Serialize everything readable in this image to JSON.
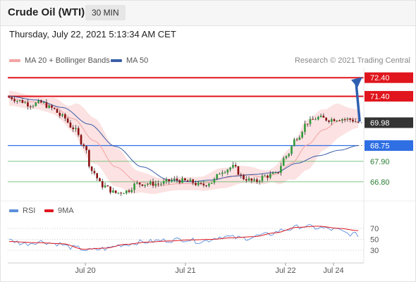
{
  "header": {
    "title": "Crude Oil (WTI)",
    "timeframe": "30 MIN",
    "datetime": "Thursday, July 22, 2021 5:13:34 AM CET"
  },
  "legend": {
    "ma20": "MA 20 + Bollinger Bands",
    "ma50": "MA 50",
    "rsi": "RSI",
    "rsi_ma": "9MA"
  },
  "source": "Research © 2021 Trading Central",
  "colors": {
    "resistance": "#e0151d",
    "pivot": "#2f6fe4",
    "support": "#54b45a",
    "current": "#333333",
    "bollinger": "#fbd8d8",
    "ma20": "#f3a3a3",
    "ma50": "#3a5ea8",
    "rsi": "#5b8fdc",
    "rsi_ma": "#e0151d",
    "candle_up": "#2f9a3a",
    "candle_down": "#8a1010"
  },
  "chart_data": [
    {
      "type": "candlestick",
      "x_ticks": [
        "Jul 20",
        "Jul 21",
        "Jul 22",
        "Jul 24"
      ],
      "ylim": [
        66.0,
        72.9
      ],
      "levels": [
        {
          "value": 72.4,
          "label": "72.40",
          "kind": "resistance"
        },
        {
          "value": 71.4,
          "label": "71.40",
          "kind": "resistance"
        },
        {
          "value": 69.98,
          "label": "69.98",
          "kind": "current"
        },
        {
          "value": 68.75,
          "label": "68.75",
          "kind": "pivot"
        },
        {
          "value": 67.9,
          "label": "67.90",
          "kind": "support"
        },
        {
          "value": 66.8,
          "label": "66.80",
          "kind": "support"
        }
      ],
      "projection": {
        "from": 69.98,
        "to": 72.4
      },
      "price_anchors": [
        [
          0,
          71.35
        ],
        [
          4,
          71.15
        ],
        [
          8,
          70.95
        ],
        [
          12,
          71.05
        ],
        [
          16,
          70.75
        ],
        [
          20,
          70.3
        ],
        [
          24,
          69.7
        ],
        [
          28,
          68.8
        ],
        [
          31,
          67.4
        ],
        [
          35,
          66.6
        ],
        [
          40,
          66.2
        ],
        [
          44,
          66.3
        ],
        [
          48,
          66.7
        ],
        [
          56,
          66.7
        ],
        [
          62,
          66.9
        ],
        [
          68,
          66.8
        ],
        [
          72,
          66.6
        ],
        [
          76,
          66.8
        ],
        [
          80,
          67.4
        ],
        [
          84,
          67.6
        ],
        [
          88,
          67.0
        ],
        [
          92,
          66.8
        ],
        [
          96,
          67.1
        ],
        [
          100,
          67.2
        ],
        [
          104,
          68.2
        ],
        [
          108,
          69.2
        ],
        [
          112,
          70.0
        ],
        [
          116,
          70.25
        ],
        [
          120,
          70.15
        ],
        [
          124,
          70.2
        ],
        [
          128,
          70.15
        ],
        [
          131,
          70.0
        ]
      ],
      "ma20_anchors": [
        [
          0,
          71.3
        ],
        [
          8,
          71.1
        ],
        [
          16,
          70.9
        ],
        [
          24,
          70.2
        ],
        [
          32,
          69.0
        ],
        [
          40,
          67.6
        ],
        [
          48,
          66.8
        ],
        [
          56,
          66.6
        ],
        [
          64,
          66.7
        ],
        [
          72,
          66.7
        ],
        [
          80,
          67.0
        ],
        [
          88,
          67.2
        ],
        [
          96,
          67.05
        ],
        [
          100,
          67.2
        ],
        [
          106,
          67.8
        ],
        [
          112,
          68.8
        ],
        [
          118,
          69.6
        ],
        [
          124,
          70.1
        ],
        [
          131,
          70.2
        ]
      ],
      "ma50_anchors": [
        [
          0,
          71.4
        ],
        [
          10,
          71.2
        ],
        [
          20,
          70.8
        ],
        [
          30,
          69.9
        ],
        [
          40,
          68.7
        ],
        [
          50,
          67.6
        ],
        [
          60,
          66.9
        ],
        [
          68,
          66.8
        ],
        [
          76,
          66.9
        ],
        [
          84,
          67.1
        ],
        [
          92,
          67.2
        ],
        [
          100,
          67.3
        ],
        [
          108,
          67.8
        ],
        [
          116,
          68.2
        ],
        [
          124,
          68.5
        ],
        [
          131,
          68.75
        ]
      ],
      "bb_width_anchors": [
        [
          0,
          0.4
        ],
        [
          12,
          0.35
        ],
        [
          20,
          0.5
        ],
        [
          30,
          1.25
        ],
        [
          40,
          1.05
        ],
        [
          50,
          0.55
        ],
        [
          60,
          0.35
        ],
        [
          70,
          0.35
        ],
        [
          80,
          0.55
        ],
        [
          90,
          0.45
        ],
        [
          98,
          0.35
        ],
        [
          104,
          0.8
        ],
        [
          112,
          1.35
        ],
        [
          120,
          1.05
        ],
        [
          131,
          0.5
        ]
      ]
    },
    {
      "type": "line",
      "series": [
        {
          "name": "RSI"
        },
        {
          "name": "9MA"
        }
      ],
      "yticks": [
        70,
        50,
        30
      ],
      "ylim": [
        12,
        88
      ],
      "rsi_anchors": [
        [
          0,
          48
        ],
        [
          6,
          42
        ],
        [
          12,
          46
        ],
        [
          18,
          42
        ],
        [
          24,
          35
        ],
        [
          30,
          30
        ],
        [
          36,
          33
        ],
        [
          42,
          40
        ],
        [
          50,
          45
        ],
        [
          58,
          48
        ],
        [
          66,
          50
        ],
        [
          72,
          46
        ],
        [
          80,
          55
        ],
        [
          88,
          52
        ],
        [
          96,
          58
        ],
        [
          104,
          68
        ],
        [
          110,
          74
        ],
        [
          116,
          71
        ],
        [
          122,
          68
        ],
        [
          128,
          60
        ],
        [
          131,
          58
        ]
      ],
      "rsi_ma_anchors": [
        [
          0,
          46
        ],
        [
          10,
          44
        ],
        [
          20,
          42
        ],
        [
          28,
          32
        ],
        [
          36,
          34
        ],
        [
          44,
          41
        ],
        [
          52,
          45
        ],
        [
          60,
          47
        ],
        [
          68,
          49
        ],
        [
          76,
          50
        ],
        [
          84,
          53
        ],
        [
          92,
          55
        ],
        [
          100,
          62
        ],
        [
          108,
          72
        ],
        [
          116,
          74
        ],
        [
          124,
          70
        ],
        [
          131,
          66
        ]
      ]
    }
  ]
}
